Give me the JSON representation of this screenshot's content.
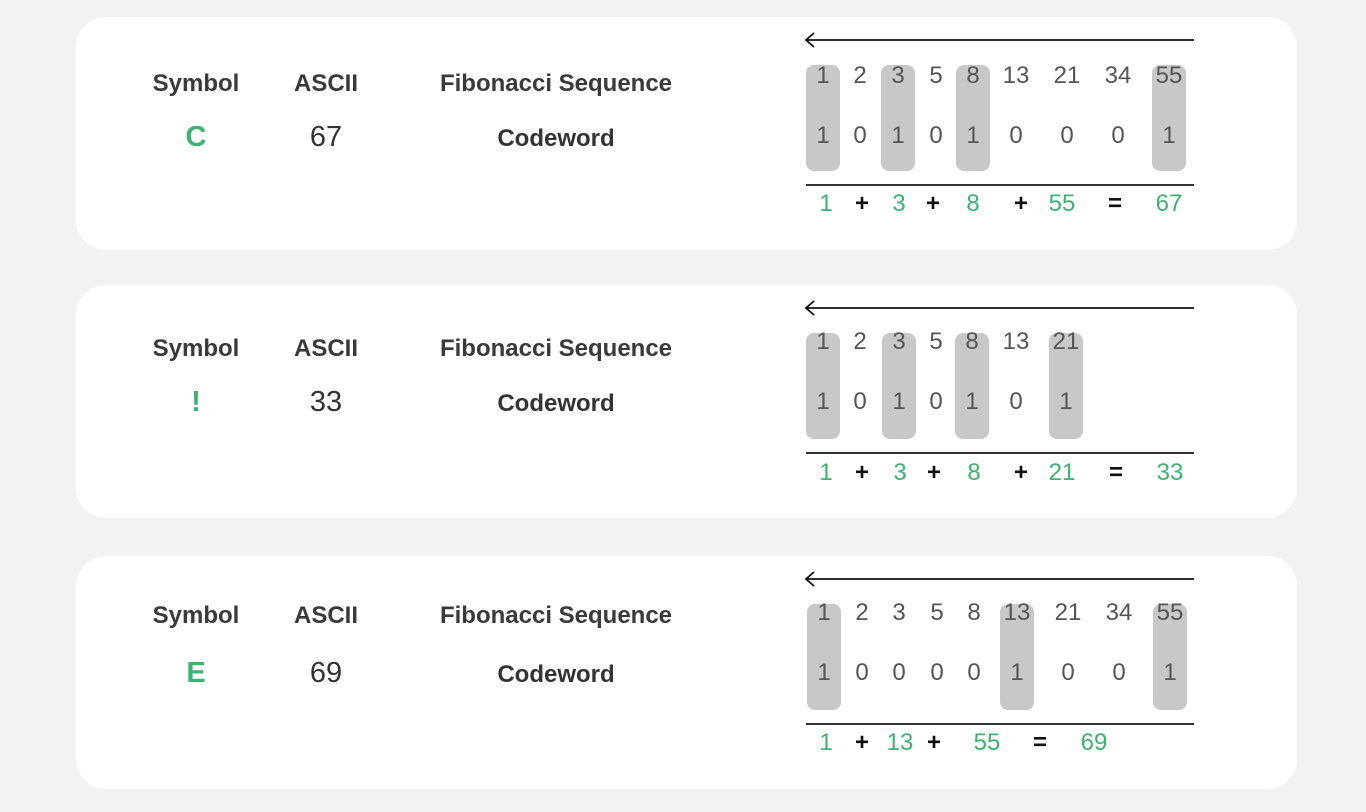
{
  "colors": {
    "accent": "#3cb371",
    "highlight": "#c8c8c8",
    "card": "#ffffff",
    "background": "#f2f2f2"
  },
  "cards": [
    {
      "symbol_header": "Symbol",
      "ascii_header": "ASCII",
      "fib_header": "Fibonacci Sequence",
      "codeword_label": "Codeword",
      "symbol": "C",
      "ascii": "67",
      "sequence": [
        "1",
        "2",
        "3",
        "5",
        "8",
        "13",
        "21",
        "34",
        "55"
      ],
      "bits": [
        "1",
        "0",
        "1",
        "0",
        "1",
        "0",
        "0",
        "0",
        "1"
      ],
      "equation": [
        "1",
        "+",
        "3",
        "+",
        "8",
        "+",
        "55",
        "=",
        "67"
      ]
    },
    {
      "symbol_header": "Symbol",
      "ascii_header": "ASCII",
      "fib_header": "Fibonacci Sequence",
      "codeword_label": "Codeword",
      "symbol": "!",
      "ascii": "33",
      "sequence": [
        "1",
        "2",
        "3",
        "5",
        "8",
        "13",
        "21"
      ],
      "bits": [
        "1",
        "0",
        "1",
        "0",
        "1",
        "0",
        "1"
      ],
      "equation": [
        "1",
        "+",
        "3",
        "+",
        "8",
        "+",
        "21",
        "=",
        "33"
      ]
    },
    {
      "symbol_header": "Symbol",
      "ascii_header": "ASCII",
      "fib_header": "Fibonacci Sequence",
      "codeword_label": "Codeword",
      "symbol": "E",
      "ascii": "69",
      "sequence": [
        "1",
        "2",
        "3",
        "5",
        "8",
        "13",
        "21",
        "34",
        "55"
      ],
      "bits": [
        "1",
        "0",
        "0",
        "0",
        "0",
        "1",
        "0",
        "0",
        "1"
      ],
      "equation": [
        "1",
        "+",
        "13",
        "+",
        "55",
        "=",
        "69"
      ]
    }
  ]
}
